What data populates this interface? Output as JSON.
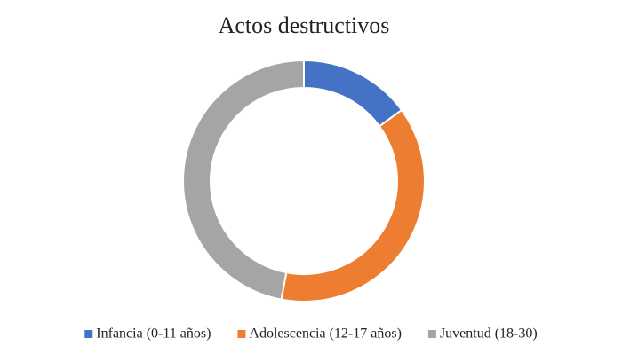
{
  "chart_data": {
    "type": "donut",
    "title": "Actos destructivos",
    "categories": [
      "Infancia (0-11 años)",
      "Adolescencia (12-17 años)",
      "Juventud (18-30)"
    ],
    "values": [
      15,
      38,
      47
    ],
    "colors": [
      "#4472c4",
      "#ed7d31",
      "#a5a5a5"
    ],
    "legend": "bottom"
  }
}
